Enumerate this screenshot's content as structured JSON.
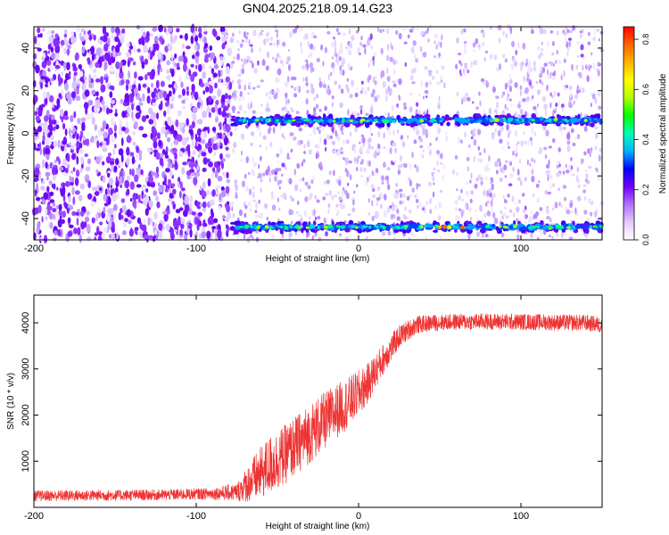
{
  "title": "GN04.2025.218.09.14.G23",
  "chart_data": [
    {
      "type": "heatmap",
      "xlabel": "Height of straight line (km)",
      "ylabel": "Frequency (Hz)",
      "xlim": [
        -200,
        150
      ],
      "ylim": [
        -50,
        50
      ],
      "xticks": [
        "-200",
        "-100",
        "0",
        "100"
      ],
      "xtick_values": [
        -200,
        -100,
        0,
        100
      ],
      "yticks": [
        "40",
        "20",
        "0",
        "-20",
        "-40"
      ],
      "ytick_values": [
        40,
        20,
        0,
        -20,
        -40
      ],
      "colorbar": {
        "label": "Normalized spectral amplitude",
        "range": [
          0,
          0.85
        ],
        "ticks": [
          "0.0",
          "0.2",
          "0.4",
          "0.6",
          "0.8"
        ],
        "tick_values": [
          0.0,
          0.2,
          0.4,
          0.6,
          0.8
        ],
        "colormap": [
          "#ffffff",
          "#e6c9ff",
          "#b070ff",
          "#7000ff",
          "#0000ff",
          "#00b4ff",
          "#00ffb4",
          "#00ff00",
          "#b4ff00",
          "#ffff00",
          "#ffb400",
          "#ff6400",
          "#ff0000"
        ]
      },
      "features": [
        {
          "name": "upper band",
          "frequency_hz": 6,
          "x_start_km": -78,
          "x_end_km": 150
        },
        {
          "name": "lower band",
          "frequency_hz": -44,
          "x_start_km": -78,
          "x_end_km": 150
        },
        {
          "name": "dense noise region",
          "x_start_km": -200,
          "x_end_km": -78
        },
        {
          "name": "gap",
          "x_start_km": 52,
          "x_end_km": 60
        }
      ]
    },
    {
      "type": "line",
      "xlabel": "Height of straight line (km)",
      "ylabel": "SNR (10 * v/v)",
      "xlim": [
        -200,
        150
      ],
      "ylim": [
        0,
        4600
      ],
      "xticks": [
        "-200",
        "-100",
        "0",
        "100"
      ],
      "xtick_values": [
        -200,
        -100,
        0,
        100
      ],
      "yticks": [
        "4000",
        "3000",
        "2000",
        "1000"
      ],
      "ytick_values": [
        4000,
        3000,
        2000,
        1000
      ],
      "line_color": "#ee3333",
      "envelope": {
        "x": [
          -200,
          -160,
          -120,
          -90,
          -75,
          -65,
          -55,
          -45,
          -35,
          -25,
          -15,
          -5,
          5,
          15,
          25,
          35,
          45,
          60,
          80,
          100,
          120,
          140,
          150
        ],
        "mean": [
          250,
          260,
          270,
          300,
          330,
          600,
          900,
          1150,
          1450,
          1750,
          2050,
          2300,
          2650,
          3200,
          3700,
          3950,
          4000,
          4020,
          4030,
          4020,
          4010,
          4000,
          3950
        ],
        "spread": [
          120,
          120,
          120,
          130,
          200,
          500,
          650,
          650,
          650,
          650,
          600,
          550,
          450,
          350,
          250,
          200,
          180,
          180,
          180,
          180,
          180,
          180,
          180
        ]
      }
    }
  ]
}
